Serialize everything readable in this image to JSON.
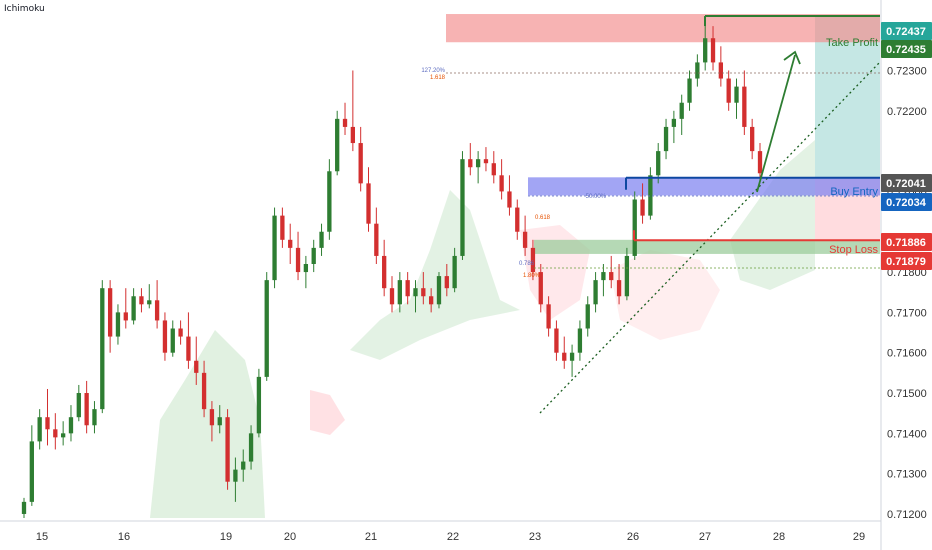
{
  "indicator_label": "Ichimoku",
  "colors": {
    "up": "#2e7d32",
    "down": "#d32f2f",
    "cloud_bull": "#c8e6c9",
    "cloud_bear": "#ffcdd2",
    "resistance_zone": "#f28b8b",
    "entry_zone": "#7b7ff0",
    "support_zone": "#9ccc9c",
    "take_profit": "#2e7d32",
    "stop_loss": "#e53935",
    "buy_entry": "#1565c0",
    "profit_box": "#b2dfdb",
    "loss_box": "#ffcdd2",
    "axis_text": "#333333",
    "grid": "#e0e3eb",
    "tag_teal": "#26a69a",
    "tag_grey": "#555555"
  },
  "chart_data": {
    "type": "candlestick",
    "x_ticks": [
      "15",
      "16",
      "19",
      "20",
      "21",
      "22",
      "23",
      "26",
      "27",
      "28",
      "29"
    ],
    "y_ticks": [
      "0.71200",
      "0.71300",
      "0.71400",
      "0.71500",
      "0.71600",
      "0.71700",
      "0.71800",
      "0.72000",
      "0.72200",
      "0.72300",
      "0.72400"
    ],
    "ylim": [
      0.7119,
      0.7245
    ],
    "grid": false,
    "price_tags": [
      {
        "value": 0.72437,
        "label": "0.72437",
        "color_key": "tag_teal"
      },
      {
        "value": 0.72435,
        "label": "0.72435",
        "color_key": "take_profit"
      },
      {
        "value": 0.72041,
        "label": "0.72041",
        "color_key": "tag_grey"
      },
      {
        "value": 0.72034,
        "label": "0.72034",
        "color_key": "buy_entry"
      },
      {
        "value": 0.71886,
        "label": "0.71886",
        "color_key": "stop_loss"
      },
      {
        "value": 0.71879,
        "label": "0.71879",
        "color_key": "stop_loss"
      }
    ],
    "annotations": {
      "take_profit_label": "Take Profit",
      "buy_entry_label": "Buy Entry",
      "stop_loss_label": "Stop Loss",
      "fib_top_1": "127.20%",
      "fib_top_2": "1.618",
      "fib_mid_1": "50.00%",
      "fib_mid_2": "0.618",
      "fib_low_1": "0.786",
      "fib_low_2": "1.80%"
    },
    "levels": {
      "take_profit": 0.72435,
      "buy_entry": 0.72034,
      "stop_loss": 0.71879,
      "resistance_zone": [
        0.7237,
        0.7244
      ],
      "entry_zone": [
        0.7199,
        0.72035
      ],
      "support_zone": [
        0.71845,
        0.7188
      ]
    },
    "candles": [
      [
        0.712,
        0.7124,
        0.7119,
        0.7123
      ],
      [
        0.7123,
        0.7142,
        0.7122,
        0.7138
      ],
      [
        0.7138,
        0.7146,
        0.7136,
        0.7144
      ],
      [
        0.7144,
        0.7151,
        0.7137,
        0.7141
      ],
      [
        0.7141,
        0.7145,
        0.7136,
        0.7139
      ],
      [
        0.7139,
        0.7143,
        0.7137,
        0.714
      ],
      [
        0.714,
        0.7147,
        0.7138,
        0.7144
      ],
      [
        0.7144,
        0.7152,
        0.7143,
        0.715
      ],
      [
        0.715,
        0.7153,
        0.714,
        0.7142
      ],
      [
        0.7142,
        0.7148,
        0.714,
        0.7146
      ],
      [
        0.7146,
        0.7178,
        0.7145,
        0.7176
      ],
      [
        0.7176,
        0.7178,
        0.716,
        0.7164
      ],
      [
        0.7164,
        0.7172,
        0.7162,
        0.717
      ],
      [
        0.717,
        0.7176,
        0.7166,
        0.7168
      ],
      [
        0.7168,
        0.7176,
        0.7167,
        0.7174
      ],
      [
        0.7174,
        0.7176,
        0.717,
        0.7172
      ],
      [
        0.7172,
        0.7177,
        0.7171,
        0.7173
      ],
      [
        0.7173,
        0.7178,
        0.7166,
        0.7168
      ],
      [
        0.7168,
        0.717,
        0.7158,
        0.716
      ],
      [
        0.716,
        0.7168,
        0.7159,
        0.7166
      ],
      [
        0.7166,
        0.7168,
        0.7162,
        0.7164
      ],
      [
        0.7164,
        0.717,
        0.7156,
        0.7158
      ],
      [
        0.7158,
        0.7164,
        0.7152,
        0.7155
      ],
      [
        0.7155,
        0.7158,
        0.7144,
        0.7146
      ],
      [
        0.7146,
        0.7148,
        0.7138,
        0.7142
      ],
      [
        0.7142,
        0.7147,
        0.714,
        0.7144
      ],
      [
        0.7144,
        0.7146,
        0.7126,
        0.7128
      ],
      [
        0.7128,
        0.7134,
        0.7123,
        0.7131
      ],
      [
        0.7131,
        0.7136,
        0.7128,
        0.7133
      ],
      [
        0.7133,
        0.7142,
        0.7131,
        0.714
      ],
      [
        0.714,
        0.7156,
        0.7139,
        0.7154
      ],
      [
        0.7154,
        0.718,
        0.7153,
        0.7178
      ],
      [
        0.7178,
        0.7196,
        0.7176,
        0.7194
      ],
      [
        0.7194,
        0.7196,
        0.7186,
        0.7188
      ],
      [
        0.7188,
        0.7192,
        0.7182,
        0.7186
      ],
      [
        0.7186,
        0.719,
        0.7178,
        0.718
      ],
      [
        0.718,
        0.7184,
        0.7176,
        0.7182
      ],
      [
        0.7182,
        0.7188,
        0.718,
        0.7186
      ],
      [
        0.7186,
        0.7192,
        0.7184,
        0.719
      ],
      [
        0.719,
        0.7208,
        0.7188,
        0.7205
      ],
      [
        0.7205,
        0.722,
        0.7204,
        0.7218
      ],
      [
        0.7218,
        0.7222,
        0.7214,
        0.7216
      ],
      [
        0.7216,
        0.723,
        0.721,
        0.7212
      ],
      [
        0.7212,
        0.7216,
        0.72,
        0.7202
      ],
      [
        0.7202,
        0.7206,
        0.719,
        0.7192
      ],
      [
        0.7192,
        0.7196,
        0.7182,
        0.7184
      ],
      [
        0.7184,
        0.7188,
        0.7174,
        0.7176
      ],
      [
        0.7176,
        0.7179,
        0.717,
        0.7172
      ],
      [
        0.7172,
        0.718,
        0.717,
        0.7178
      ],
      [
        0.7178,
        0.718,
        0.7172,
        0.7174
      ],
      [
        0.7174,
        0.7178,
        0.717,
        0.7176
      ],
      [
        0.7176,
        0.718,
        0.7172,
        0.7174
      ],
      [
        0.7174,
        0.7176,
        0.717,
        0.7172
      ],
      [
        0.7172,
        0.718,
        0.7171,
        0.7179
      ],
      [
        0.7179,
        0.7182,
        0.7174,
        0.7176
      ],
      [
        0.7176,
        0.7186,
        0.7175,
        0.7184
      ],
      [
        0.7184,
        0.721,
        0.7183,
        0.7208
      ],
      [
        0.7208,
        0.7212,
        0.7204,
        0.7206
      ],
      [
        0.7206,
        0.721,
        0.7202,
        0.7208
      ],
      [
        0.7208,
        0.7211,
        0.7205,
        0.7207
      ],
      [
        0.7207,
        0.721,
        0.7202,
        0.7204
      ],
      [
        0.7204,
        0.7208,
        0.7198,
        0.72
      ],
      [
        0.72,
        0.7204,
        0.7194,
        0.7196
      ],
      [
        0.7196,
        0.7198,
        0.7188,
        0.719
      ],
      [
        0.719,
        0.7194,
        0.7184,
        0.7186
      ],
      [
        0.7186,
        0.7188,
        0.7178,
        0.718
      ],
      [
        0.718,
        0.7182,
        0.717,
        0.7172
      ],
      [
        0.7172,
        0.7174,
        0.7164,
        0.7166
      ],
      [
        0.7166,
        0.7168,
        0.7158,
        0.716
      ],
      [
        0.716,
        0.7164,
        0.7156,
        0.7158
      ],
      [
        0.7158,
        0.7162,
        0.7154,
        0.716
      ],
      [
        0.716,
        0.7168,
        0.7158,
        0.7166
      ],
      [
        0.7166,
        0.7174,
        0.7164,
        0.7172
      ],
      [
        0.7172,
        0.718,
        0.717,
        0.7178
      ],
      [
        0.7178,
        0.7182,
        0.7174,
        0.718
      ],
      [
        0.718,
        0.7184,
        0.7176,
        0.7178
      ],
      [
        0.7178,
        0.7182,
        0.7172,
        0.7174
      ],
      [
        0.7174,
        0.7186,
        0.7173,
        0.7184
      ],
      [
        0.7184,
        0.72,
        0.7183,
        0.7198
      ],
      [
        0.7198,
        0.7202,
        0.7192,
        0.7194
      ],
      [
        0.7194,
        0.7206,
        0.7193,
        0.7204
      ],
      [
        0.7204,
        0.7212,
        0.7202,
        0.721
      ],
      [
        0.721,
        0.7218,
        0.7208,
        0.7216
      ],
      [
        0.7216,
        0.722,
        0.7212,
        0.7218
      ],
      [
        0.7218,
        0.7224,
        0.7214,
        0.7222
      ],
      [
        0.7222,
        0.723,
        0.722,
        0.7228
      ],
      [
        0.7228,
        0.7234,
        0.7226,
        0.7232
      ],
      [
        0.7232,
        0.7242,
        0.723,
        0.7238
      ],
      [
        0.7238,
        0.7241,
        0.723,
        0.7232
      ],
      [
        0.7232,
        0.7236,
        0.7226,
        0.7228
      ],
      [
        0.7228,
        0.723,
        0.722,
        0.7222
      ],
      [
        0.7222,
        0.7228,
        0.7218,
        0.7226
      ],
      [
        0.7226,
        0.723,
        0.7214,
        0.7216
      ],
      [
        0.7216,
        0.7218,
        0.7208,
        0.721
      ],
      [
        0.721,
        0.7212,
        0.7203,
        0.72045
      ]
    ]
  }
}
